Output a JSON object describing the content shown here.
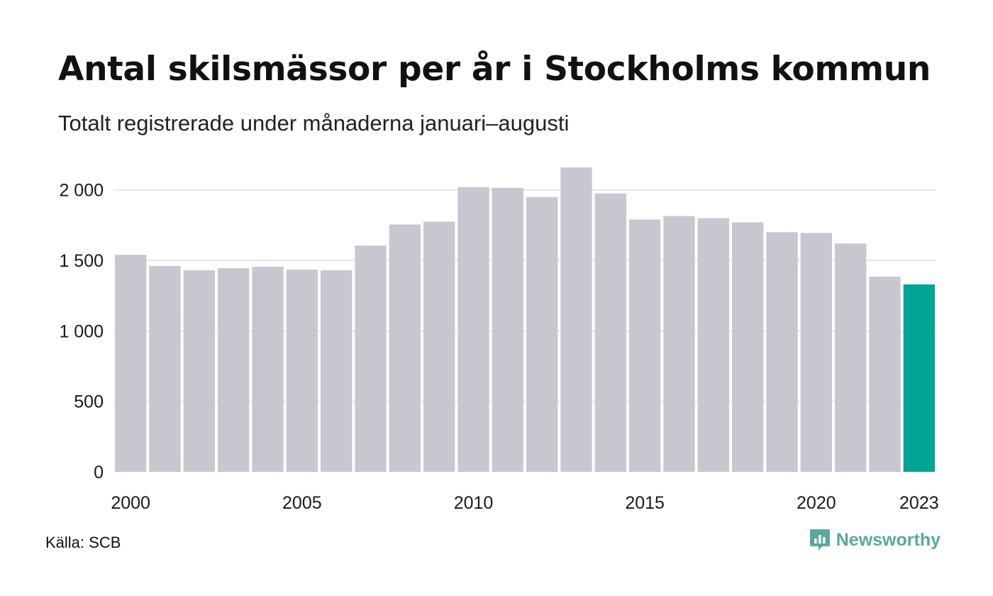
{
  "title": "Antal skilsmässor per år i Stockholms kommun",
  "subtitle": "Totalt registrerade under månaderna januari–augusti",
  "source": "Källa: SCB",
  "brand": "Newsworthy",
  "colors": {
    "bar": "#c8c7d0",
    "highlight": "#00a497",
    "grid": "#e6e6ea",
    "brand": "#5aa89a"
  },
  "chart_data": {
    "type": "bar",
    "categories": [
      "2000",
      "2001",
      "2002",
      "2003",
      "2004",
      "2005",
      "2006",
      "2007",
      "2008",
      "2009",
      "2010",
      "2011",
      "2012",
      "2013",
      "2014",
      "2015",
      "2016",
      "2017",
      "2018",
      "2019",
      "2020",
      "2021",
      "2022",
      "2023"
    ],
    "values": [
      1540,
      1460,
      1430,
      1445,
      1455,
      1435,
      1430,
      1605,
      1755,
      1775,
      2020,
      2015,
      1950,
      2160,
      1975,
      1790,
      1815,
      1800,
      1770,
      1700,
      1695,
      1620,
      1385,
      1330
    ],
    "highlight_category": "2023",
    "x_tick_labels": [
      "2000",
      "2005",
      "2010",
      "2015",
      "2020",
      "2023"
    ],
    "y_ticks": [
      0,
      500,
      1000,
      1500,
      2000
    ],
    "y_tick_labels": [
      "0",
      "500",
      "1 000",
      "1 500",
      "2 000"
    ],
    "ylim": [
      0,
      2200
    ],
    "xlabel": "",
    "ylabel": "",
    "grid": true
  }
}
